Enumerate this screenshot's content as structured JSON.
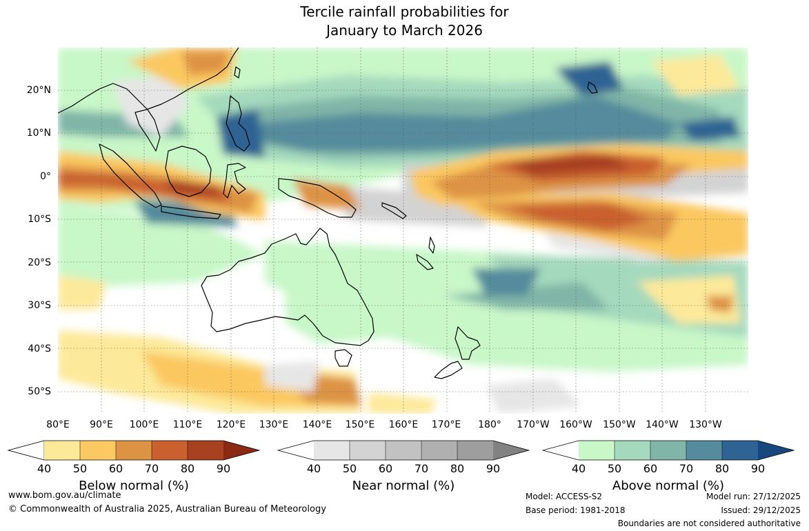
{
  "title": {
    "line1": "Tercile rainfall probabilities for",
    "line2": "January to March 2026"
  },
  "lat_labels": [
    "20°N",
    "10°N",
    "0°",
    "10°S",
    "20°S",
    "30°S",
    "40°S",
    "50°S"
  ],
  "lon_labels": [
    "80°E",
    "90°E",
    "100°E",
    "110°E",
    "120°E",
    "130°E",
    "140°E",
    "150°E",
    "160°E",
    "170°E",
    "180°",
    "170°W",
    "160°W",
    "150°W",
    "140°W",
    "130°W"
  ],
  "legends": {
    "below": {
      "caption": "Below normal (%)",
      "ticks": [
        "40",
        "50",
        "60",
        "70",
        "80",
        "90"
      ],
      "colors": [
        "#ffffff",
        "#fde99a",
        "#fbc861",
        "#dd9344",
        "#c9602e",
        "#a84120",
        "#8a2a14"
      ]
    },
    "near": {
      "caption": "Near normal (%)",
      "ticks": [
        "40",
        "50",
        "60",
        "70",
        "80",
        "90"
      ],
      "colors": [
        "#ffffff",
        "#e6e6e6",
        "#d3d3d3",
        "#c2c2c2",
        "#b0b0b0",
        "#9e9e9e",
        "#828282"
      ]
    },
    "above": {
      "caption": "Above normal (%)",
      "ticks": [
        "40",
        "50",
        "60",
        "70",
        "80",
        "90"
      ],
      "colors": [
        "#ffffff",
        "#c8f7c8",
        "#a5d9bd",
        "#80b5a7",
        "#558b9c",
        "#2e6393",
        "#17477c"
      ]
    }
  },
  "footer": {
    "url": "www.bom.gov.au/climate",
    "copyright": "© Commonwealth of Australia 2025, Australian Bureau of Meteorology",
    "model": "Model: ACCESS-S2",
    "base_period": "Base period: 1981-2018",
    "model_run": "Model run: 27/12/2025",
    "issued": "Issued: 29/12/2025",
    "disclaimer": "Boundaries are not considered authoritative"
  }
}
